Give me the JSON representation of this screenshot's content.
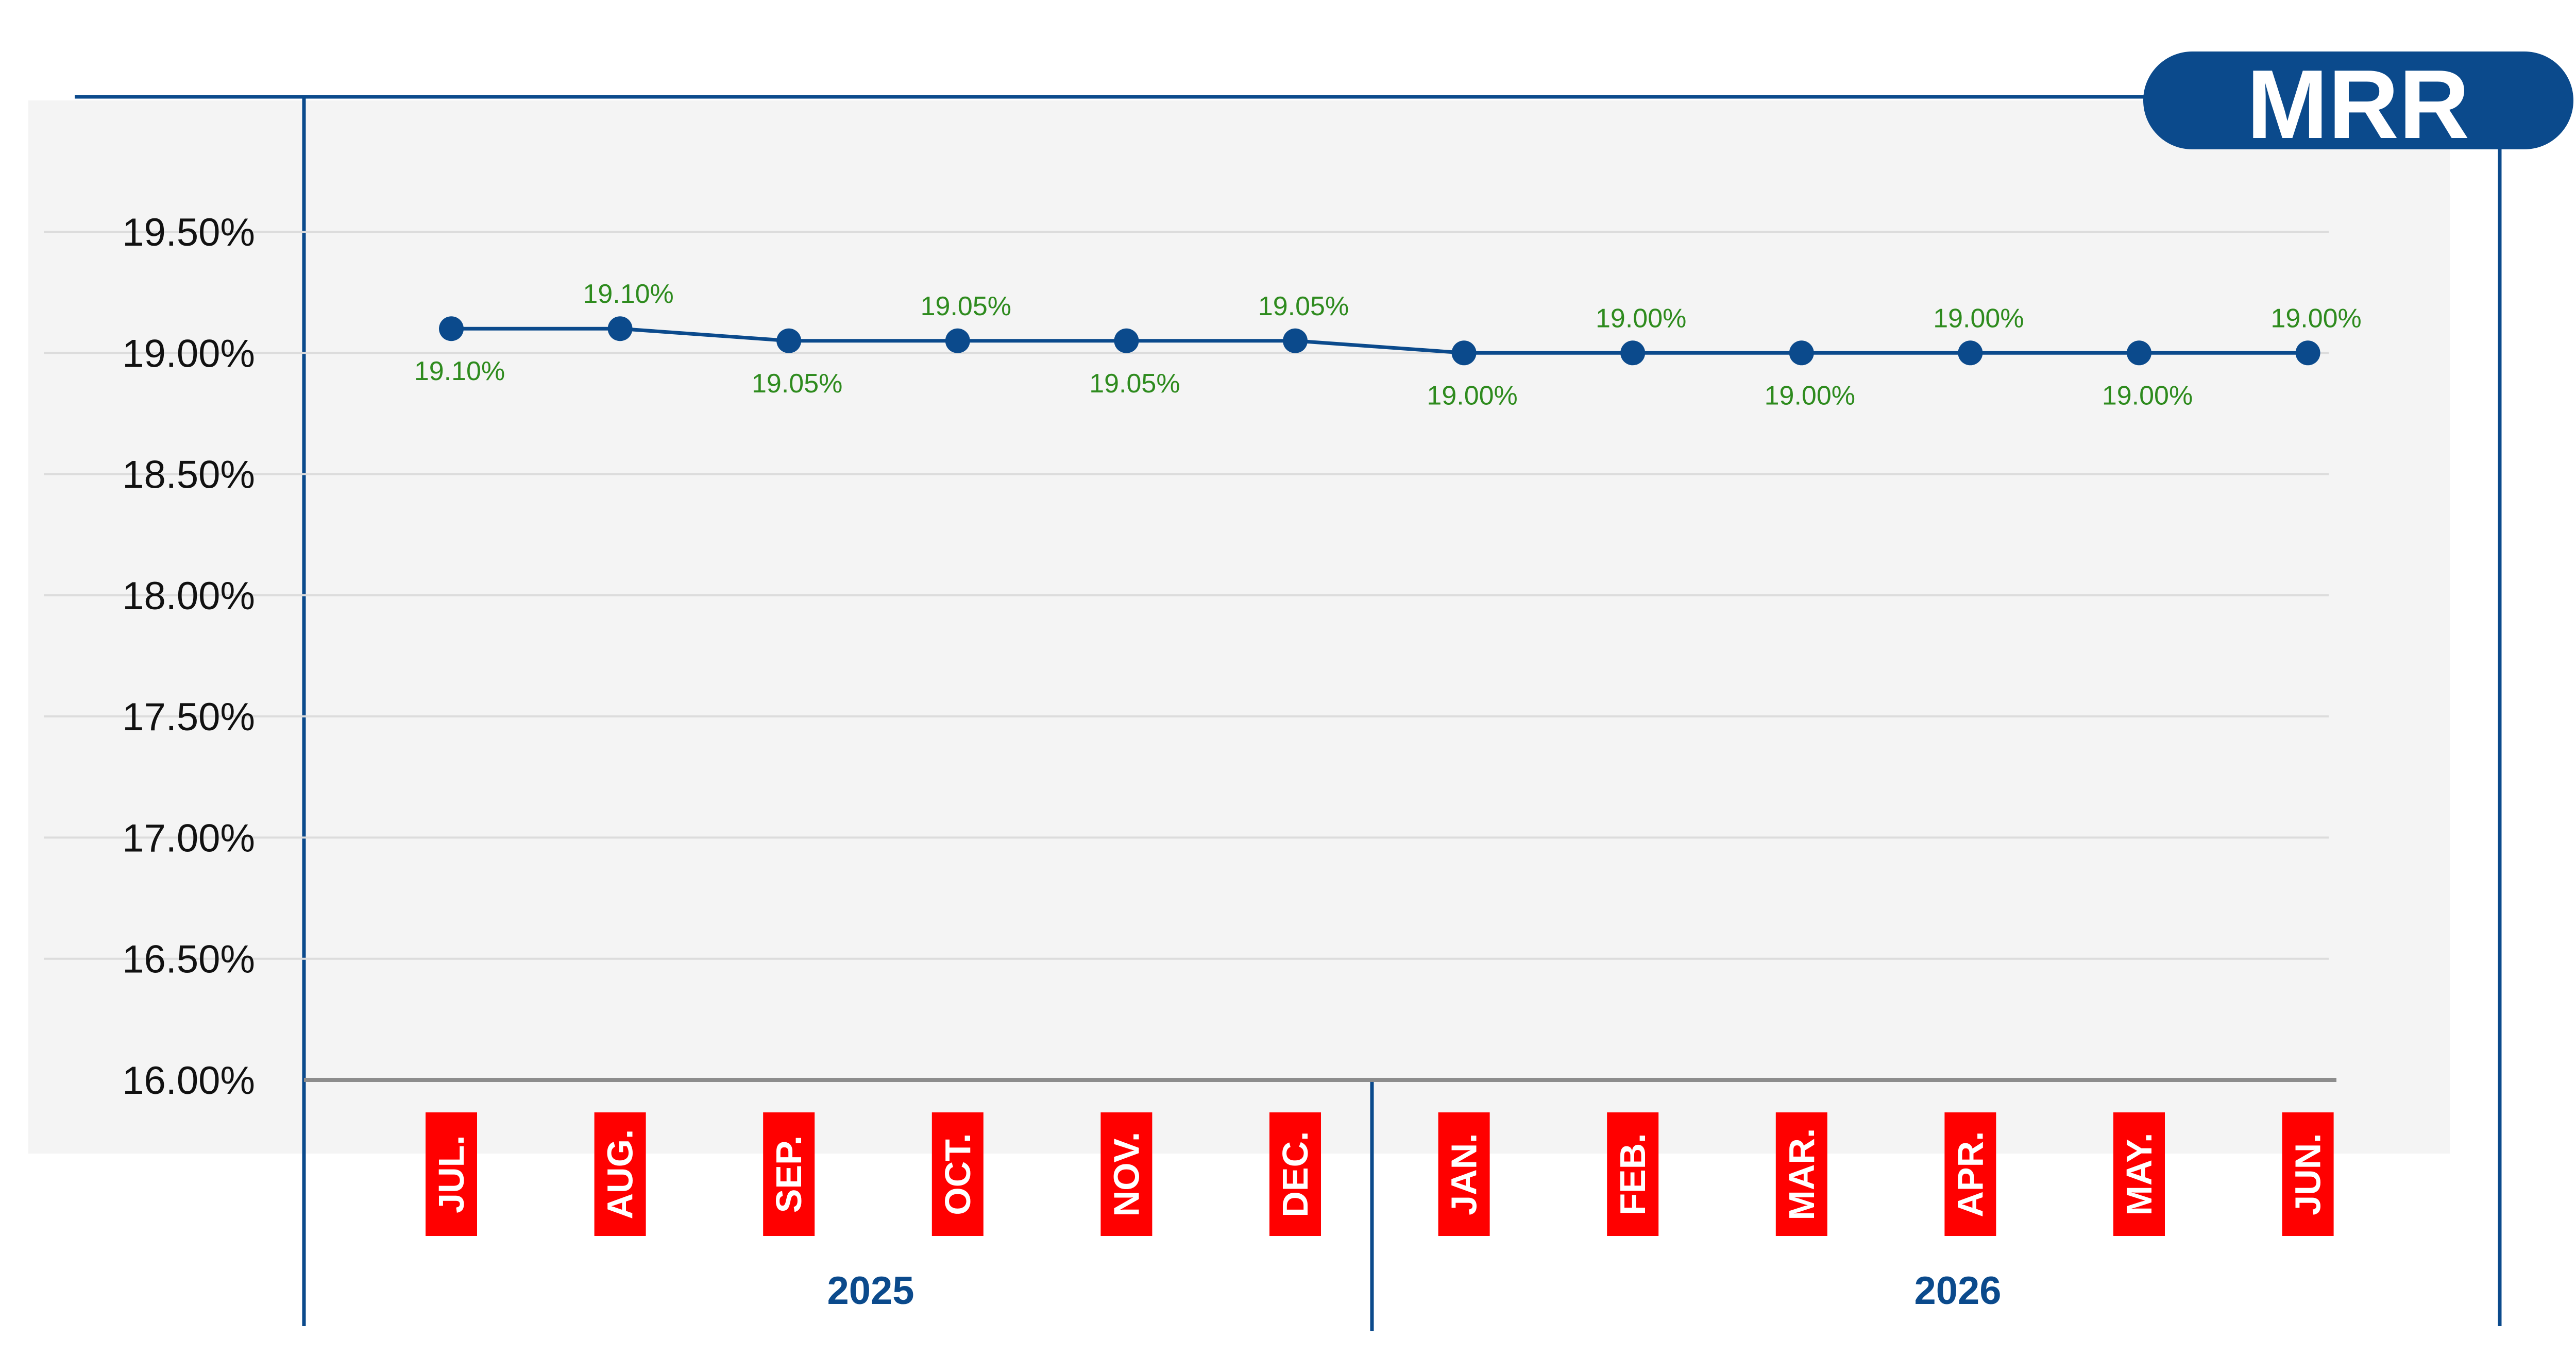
{
  "badge": {
    "label": "MRR"
  },
  "colors": {
    "accent": "#0b4a8c",
    "data_label": "#2e8b1e",
    "month_box": "#ff0000",
    "plot_bg": "#f4f4f4",
    "grid": "#dcdcdc",
    "baseline": "#8c8c8c"
  },
  "chart_data": {
    "type": "line",
    "title": "MRR",
    "xlabel": "",
    "ylabel": "",
    "ylim": [
      16.0,
      19.75
    ],
    "y_ticks": [
      "19.50%",
      "19.00%",
      "18.50%",
      "18.00%",
      "17.50%",
      "17.00%",
      "16.50%",
      "16.00%"
    ],
    "y_tick_values": [
      19.5,
      19.0,
      18.5,
      18.0,
      17.5,
      17.0,
      16.5,
      16.0
    ],
    "grid": true,
    "categories": [
      "JUL.",
      "AUG.",
      "SEP.",
      "OCT.",
      "NOV.",
      "DEC.",
      "JAN.",
      "FEB.",
      "MAR.",
      "APR.",
      "MAY.",
      "JUN."
    ],
    "values": [
      19.1,
      19.1,
      19.05,
      19.05,
      19.05,
      19.05,
      19.0,
      19.0,
      19.0,
      19.0,
      19.0,
      19.0
    ],
    "data_labels": [
      "19.10%",
      "19.10%",
      "19.05%",
      "19.05%",
      "19.05%",
      "19.05%",
      "19.00%",
      "19.00%",
      "19.00%",
      "19.00%",
      "19.00%",
      "19.00%"
    ],
    "year_groups": [
      {
        "label": "2025",
        "months": [
          "JUL.",
          "AUG.",
          "SEP.",
          "OCT.",
          "NOV.",
          "DEC."
        ]
      },
      {
        "label": "2026",
        "months": [
          "JAN.",
          "FEB.",
          "MAR.",
          "APR.",
          "MAY.",
          "JUN."
        ]
      }
    ]
  }
}
